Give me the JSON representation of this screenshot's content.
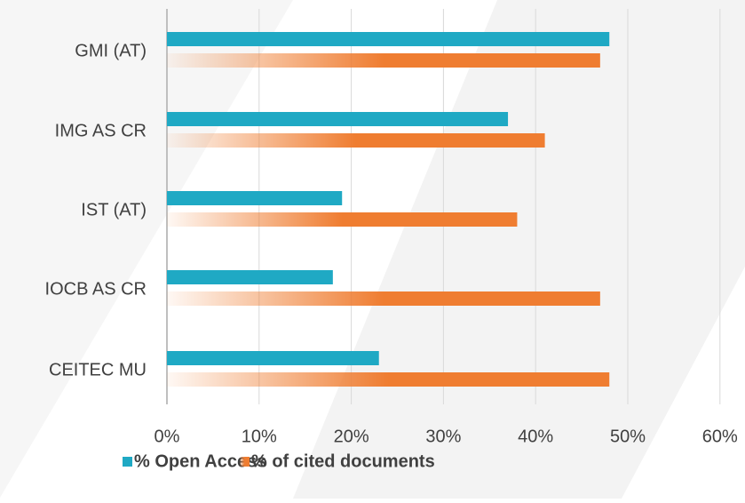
{
  "chart_data": {
    "type": "hbar",
    "categories": [
      "GMI (AT)",
      "IMG AS CR",
      "IST (AT)",
      "IOCB AS CR",
      "CEITEC MU"
    ],
    "series": [
      {
        "name": "% Open Access",
        "color": "#1fa9c4",
        "values": [
          48,
          37,
          19,
          18,
          23
        ]
      },
      {
        "name": "% of cited documents",
        "color": "#ef7d31",
        "values": [
          47,
          41,
          38,
          47,
          48
        ]
      }
    ],
    "xlim": [
      0,
      62
    ],
    "xticks": [
      {
        "value": 0,
        "label": "0%"
      },
      {
        "value": 10,
        "label": "10%"
      },
      {
        "value": 20,
        "label": "20%"
      },
      {
        "value": 30,
        "label": "30%"
      },
      {
        "value": 40,
        "label": "40%"
      },
      {
        "value": 50,
        "label": "50%"
      },
      {
        "value": 60,
        "label": "60%"
      }
    ],
    "grid": true,
    "legend": "bottom"
  }
}
